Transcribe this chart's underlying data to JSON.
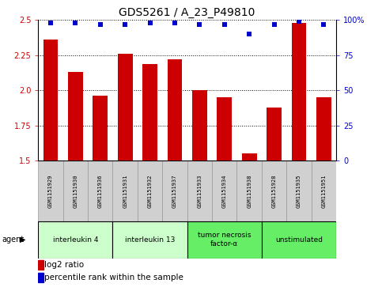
{
  "title": "GDS5261 / A_23_P49810",
  "samples": [
    "GSM1151929",
    "GSM1151930",
    "GSM1151936",
    "GSM1151931",
    "GSM1151932",
    "GSM1151937",
    "GSM1151933",
    "GSM1151934",
    "GSM1151938",
    "GSM1151928",
    "GSM1151935",
    "GSM1151951"
  ],
  "log2_ratio": [
    2.36,
    2.13,
    1.96,
    2.26,
    2.19,
    2.22,
    2.0,
    1.95,
    1.55,
    1.88,
    2.48,
    1.95
  ],
  "percentile_rank": [
    98,
    98,
    97,
    97,
    98,
    98,
    97,
    97,
    90,
    97,
    99,
    97
  ],
  "ylim_left": [
    1.5,
    2.5
  ],
  "ylim_right": [
    0,
    100
  ],
  "yticks_left": [
    1.5,
    1.75,
    2.0,
    2.25,
    2.5
  ],
  "yticks_right": [
    0,
    25,
    50,
    75,
    100
  ],
  "bar_color": "#cc0000",
  "dot_color": "#0000cc",
  "agent_groups": [
    {
      "label": "interleukin 4",
      "start": 0,
      "end": 2,
      "color": "#ccffcc"
    },
    {
      "label": "interleukin 13",
      "start": 3,
      "end": 5,
      "color": "#ccffcc"
    },
    {
      "label": "tumor necrosis\nfactor-α",
      "start": 6,
      "end": 8,
      "color": "#66ee66"
    },
    {
      "label": "unstimulated",
      "start": 9,
      "end": 11,
      "color": "#66ee66"
    }
  ],
  "legend_bar_label": "log2 ratio",
  "legend_dot_label": "percentile rank within the sample",
  "agent_label": "agent",
  "bg_color": "#ffffff",
  "title_fontsize": 10,
  "tick_fontsize": 7,
  "legend_fontsize": 7.5,
  "sample_fontsize": 5,
  "agent_fontsize": 6.5
}
